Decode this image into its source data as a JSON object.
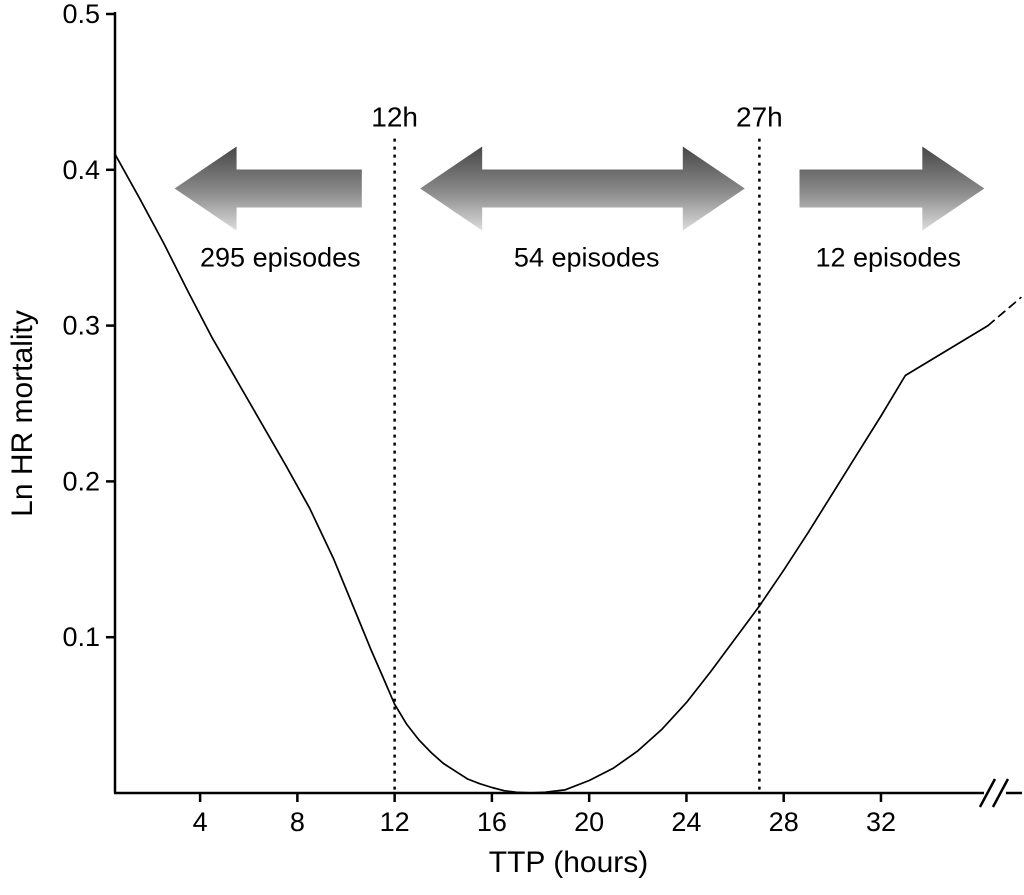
{
  "figure": {
    "background": "#ffffff",
    "ink": "#000000"
  },
  "chart_data": {
    "type": "line",
    "title": "",
    "xlabel": "TTP (hours)",
    "ylabel": "Ln HR mortality",
    "xlim": [
      0.5,
      37.8
    ],
    "ylim": [
      0,
      0.5
    ],
    "x_ticks": [
      4,
      8,
      12,
      16,
      20,
      24,
      28,
      32
    ],
    "y_ticks": [
      0.1,
      0.2,
      0.3,
      0.4,
      0.5
    ],
    "grid": false,
    "legend": false,
    "axis_break": {
      "axis": "x",
      "position_hours": 36.4
    },
    "series": [
      {
        "name": "ln-hr-mortality-curve",
        "style": "solid",
        "points": [
          [
            0.5,
            0.41
          ],
          [
            1.5,
            0.382
          ],
          [
            2.5,
            0.353
          ],
          [
            3.5,
            0.322
          ],
          [
            4.5,
            0.292
          ],
          [
            5.5,
            0.265
          ],
          [
            6.5,
            0.238
          ],
          [
            7.5,
            0.211
          ],
          [
            8.5,
            0.183
          ],
          [
            9.5,
            0.15
          ],
          [
            10.5,
            0.112
          ],
          [
            11,
            0.093
          ],
          [
            11.5,
            0.075
          ],
          [
            12,
            0.057
          ],
          [
            12.5,
            0.044
          ],
          [
            13,
            0.034
          ],
          [
            13.5,
            0.026
          ],
          [
            14,
            0.019
          ],
          [
            14.5,
            0.014
          ],
          [
            15,
            0.009
          ],
          [
            15.5,
            0.006
          ],
          [
            16,
            0.0035
          ],
          [
            16.5,
            0.0015
          ],
          [
            17,
            0.0005
          ],
          [
            17.6,
            0
          ],
          [
            18.2,
            0.0005
          ],
          [
            19,
            0.002
          ],
          [
            20,
            0.008
          ],
          [
            21,
            0.016
          ],
          [
            22,
            0.027
          ],
          [
            23,
            0.041
          ],
          [
            24,
            0.058
          ],
          [
            25,
            0.078
          ],
          [
            26,
            0.099
          ],
          [
            27,
            0.12
          ],
          [
            28,
            0.143
          ],
          [
            29,
            0.167
          ],
          [
            30,
            0.192
          ],
          [
            31,
            0.217
          ],
          [
            32,
            0.242
          ],
          [
            33,
            0.268
          ],
          [
            36.4,
            0.3
          ]
        ]
      },
      {
        "name": "ln-hr-mortality-extrapolated",
        "style": "dashed",
        "points": [
          [
            36.4,
            0.3
          ],
          [
            37.75,
            0.318
          ]
        ]
      }
    ],
    "reference_lines": [
      {
        "x": 12,
        "label": "12h",
        "top_value": 0.42
      },
      {
        "x": 27,
        "label": "27h",
        "top_value": 0.42
      }
    ],
    "annotations": [
      {
        "label": "295 episodes",
        "arrow_heads": "left",
        "from_hours": 2.95,
        "to_hours": 10.65,
        "label_center_hours": 7.3,
        "arrow_center_value": 0.388,
        "label_value": 0.338
      },
      {
        "label": "54 episodes",
        "arrow_heads": "both",
        "from_hours": 13.05,
        "to_hours": 26.4,
        "label_center_hours": 19.9,
        "arrow_center_value": 0.388,
        "label_value": 0.338
      },
      {
        "label": "12 episodes",
        "arrow_heads": "right",
        "from_hours": 28.65,
        "to_hours": 36.25,
        "label_center_hours": 32.3,
        "arrow_center_value": 0.388,
        "label_value": 0.338
      }
    ],
    "styles": {
      "line_color": "#000000",
      "arrow_gradient_top": "#474747",
      "arrow_gradient_mid": "#8c8c8c",
      "arrow_gradient_bottom": "#dcdcdc"
    }
  }
}
